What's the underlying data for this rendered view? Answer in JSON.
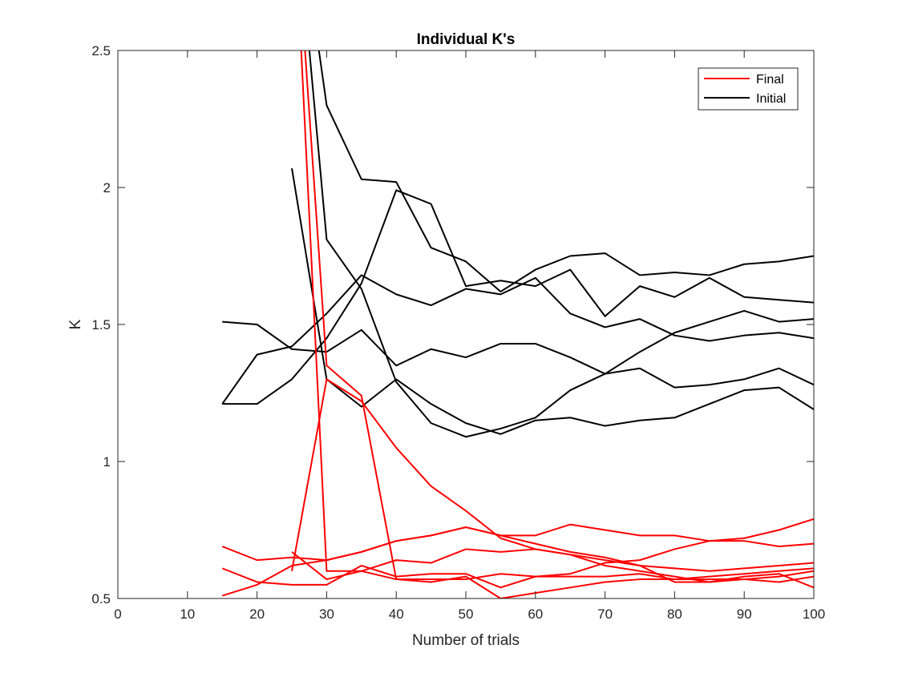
{
  "chart_data": {
    "type": "line",
    "title": "Individual K's",
    "xlabel": "Number of trials",
    "ylabel": "K",
    "xlim": [
      0,
      100
    ],
    "ylim": [
      0.5,
      2.5
    ],
    "xticks": [
      0,
      10,
      20,
      30,
      40,
      50,
      60,
      70,
      80,
      90,
      100
    ],
    "yticks": [
      0.5,
      1,
      1.5,
      2,
      2.5
    ],
    "xtick_labels": [
      "0",
      "10",
      "20",
      "30",
      "40",
      "50",
      "60",
      "70",
      "80",
      "90",
      "100"
    ],
    "ytick_labels": [
      "0.5",
      "1",
      "1.5",
      "2",
      "2.5"
    ],
    "grid": false,
    "box": true,
    "legend": {
      "placement": "top-right",
      "entries": [
        {
          "label": "Final",
          "color": "#ff0000"
        },
        {
          "label": "Initial",
          "color": "#000000"
        }
      ]
    },
    "x": [
      15,
      20,
      25,
      30,
      35,
      40,
      45,
      50,
      55,
      60,
      65,
      70,
      75,
      80,
      85,
      90,
      95,
      100
    ],
    "series": [
      {
        "group": "Initial",
        "color": "#000000",
        "values": [
          null,
          null,
          3.2,
          2.3,
          2.03,
          2.02,
          1.78,
          1.73,
          1.62,
          1.7,
          1.75,
          1.76,
          1.68,
          1.69,
          1.68,
          1.72,
          1.73,
          1.75
        ]
      },
      {
        "group": "Initial",
        "color": "#000000",
        "values": [
          1.51,
          1.5,
          1.41,
          1.4,
          1.48,
          1.35,
          1.41,
          1.38,
          1.43,
          1.43,
          1.38,
          1.32,
          1.34,
          1.27,
          1.28,
          1.3,
          1.34,
          1.28
        ]
      },
      {
        "group": "Initial",
        "color": "#000000",
        "values": [
          1.21,
          1.21,
          1.3,
          1.45,
          1.65,
          1.99,
          1.94,
          1.64,
          1.66,
          1.64,
          1.7,
          1.53,
          1.64,
          1.6,
          1.67,
          1.6,
          1.59,
          1.58
        ]
      },
      {
        "group": "Initial",
        "color": "#000000",
        "values": [
          1.21,
          1.39,
          1.42,
          1.54,
          1.68,
          1.61,
          1.57,
          1.63,
          1.61,
          1.67,
          1.54,
          1.49,
          1.52,
          1.46,
          1.44,
          1.46,
          1.47,
          1.45
        ]
      },
      {
        "group": "Initial",
        "color": "#000000",
        "values": [
          null,
          null,
          3.2,
          1.81,
          1.63,
          1.29,
          1.14,
          1.09,
          1.12,
          1.16,
          1.26,
          1.32,
          1.4,
          1.47,
          1.51,
          1.55,
          1.51,
          1.52
        ]
      },
      {
        "group": "Initial",
        "color": "#000000",
        "values": [
          null,
          null,
          2.07,
          1.3,
          1.2,
          1.3,
          1.21,
          1.14,
          1.1,
          1.15,
          1.16,
          1.13,
          1.15,
          1.16,
          1.21,
          1.26,
          1.27,
          1.19
        ]
      },
      {
        "group": "Final",
        "color": "#ff0000",
        "values": [
          0.69,
          0.64,
          0.65,
          0.64,
          0.67,
          0.71,
          0.73,
          0.76,
          0.73,
          0.73,
          0.77,
          0.75,
          0.73,
          0.73,
          0.71,
          0.71,
          0.69,
          0.7
        ]
      },
      {
        "group": "Final",
        "color": "#ff0000",
        "values": [
          0.61,
          0.56,
          0.55,
          0.55,
          0.62,
          0.58,
          0.59,
          0.59,
          0.54,
          0.58,
          0.59,
          0.63,
          0.64,
          0.68,
          0.71,
          0.72,
          0.75,
          0.79
        ]
      },
      {
        "group": "Final",
        "color": "#ff0000",
        "values": [
          0.51,
          0.55,
          0.62,
          0.64,
          0.67,
          0.71,
          0.73,
          0.76,
          0.73,
          0.7,
          0.67,
          0.65,
          0.62,
          0.61,
          0.6,
          0.61,
          0.62,
          0.63
        ]
      },
      {
        "group": "Final",
        "color": "#ff0000",
        "values": [
          null,
          null,
          3.2,
          1.35,
          1.24,
          0.57,
          0.57,
          0.57,
          0.59,
          0.58,
          0.58,
          0.58,
          0.59,
          0.57,
          0.57,
          0.57,
          0.56,
          0.58
        ]
      },
      {
        "group": "Final",
        "color": "#ff0000",
        "values": [
          null,
          null,
          0.6,
          1.3,
          1.22,
          1.05,
          0.91,
          0.82,
          0.72,
          0.68,
          0.66,
          0.64,
          0.62,
          0.56,
          0.56,
          0.58,
          0.59,
          0.54
        ]
      },
      {
        "group": "Final",
        "color": "#ff0000",
        "values": [
          null,
          null,
          0.67,
          0.57,
          0.6,
          0.64,
          0.63,
          0.68,
          0.67,
          0.68,
          0.66,
          0.62,
          0.6,
          0.58,
          0.56,
          0.57,
          0.58,
          0.6
        ]
      },
      {
        "group": "Final",
        "color": "#ff0000",
        "values": [
          null,
          null,
          3.2,
          0.6,
          0.6,
          0.57,
          0.56,
          0.58,
          0.5,
          0.52,
          0.54,
          0.56,
          0.57,
          0.57,
          0.58,
          0.59,
          0.6,
          0.61
        ]
      }
    ]
  }
}
